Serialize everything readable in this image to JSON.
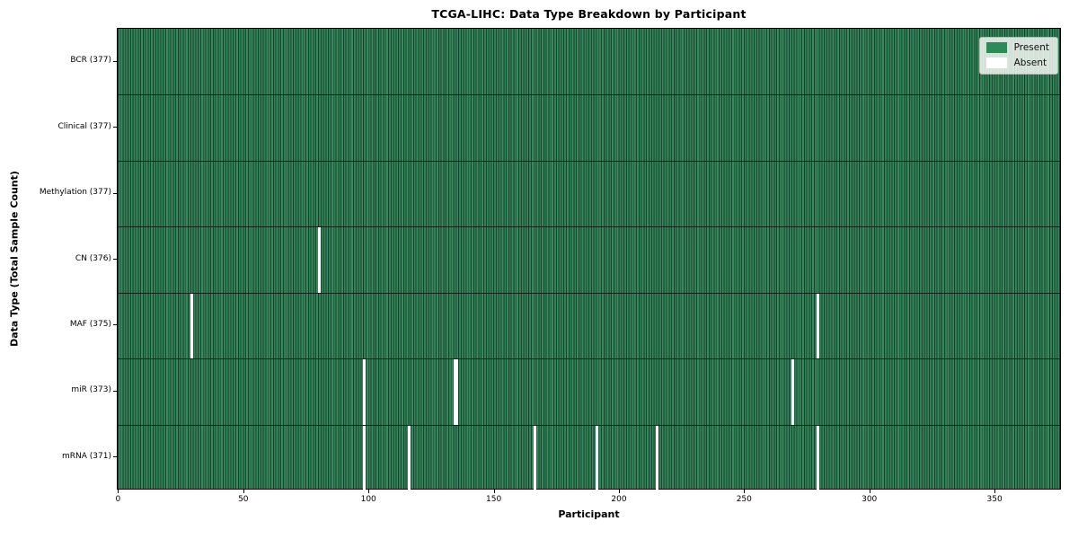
{
  "title": "TCGA-LIHC: Data Type Breakdown by Participant",
  "xlabel": "Participant",
  "ylabel": "Data Type (Total Sample Count)",
  "legend": {
    "present_label": "Present",
    "absent_label": "Absent"
  },
  "colors": {
    "present": "#2e8b57",
    "absent": "#ffffff",
    "cell_edge": "#17492e",
    "row_separator": "#0c1810",
    "frame": "#000000",
    "legend_bg": "#eef1ea",
    "legend_border": "#b3bbb3"
  },
  "chart_data": {
    "type": "heatmap",
    "title": "TCGA-LIHC: Data Type Breakdown by Participant",
    "xlabel": "Participant",
    "ylabel": "Data Type (Total Sample Count)",
    "legend_entries": [
      "Present",
      "Absent"
    ],
    "legend_position": "upper right",
    "n_participants": 377,
    "x_range": [
      0,
      376
    ],
    "x_ticks": [
      0,
      50,
      100,
      150,
      200,
      250,
      300,
      350
    ],
    "grid": false,
    "rows": [
      {
        "label": "BCR (377)",
        "data_type": "BCR",
        "total": 377,
        "absent_participants": []
      },
      {
        "label": "Clinical (377)",
        "data_type": "Clinical",
        "total": 377,
        "absent_participants": []
      },
      {
        "label": "Methylation (377)",
        "data_type": "Methylation",
        "total": 377,
        "absent_participants": []
      },
      {
        "label": "CN (376)",
        "data_type": "CN",
        "total": 376,
        "absent_participants": [
          80
        ]
      },
      {
        "label": "MAF (375)",
        "data_type": "MAF",
        "total": 375,
        "absent_participants": [
          29,
          279
        ]
      },
      {
        "label": "miR (373)",
        "data_type": "miR",
        "total": 373,
        "absent_participants": [
          98,
          134,
          135,
          269
        ]
      },
      {
        "label": "mRNA (371)",
        "data_type": "mRNA",
        "total": 371,
        "absent_participants": [
          98,
          116,
          166,
          191,
          215,
          279
        ]
      }
    ]
  }
}
